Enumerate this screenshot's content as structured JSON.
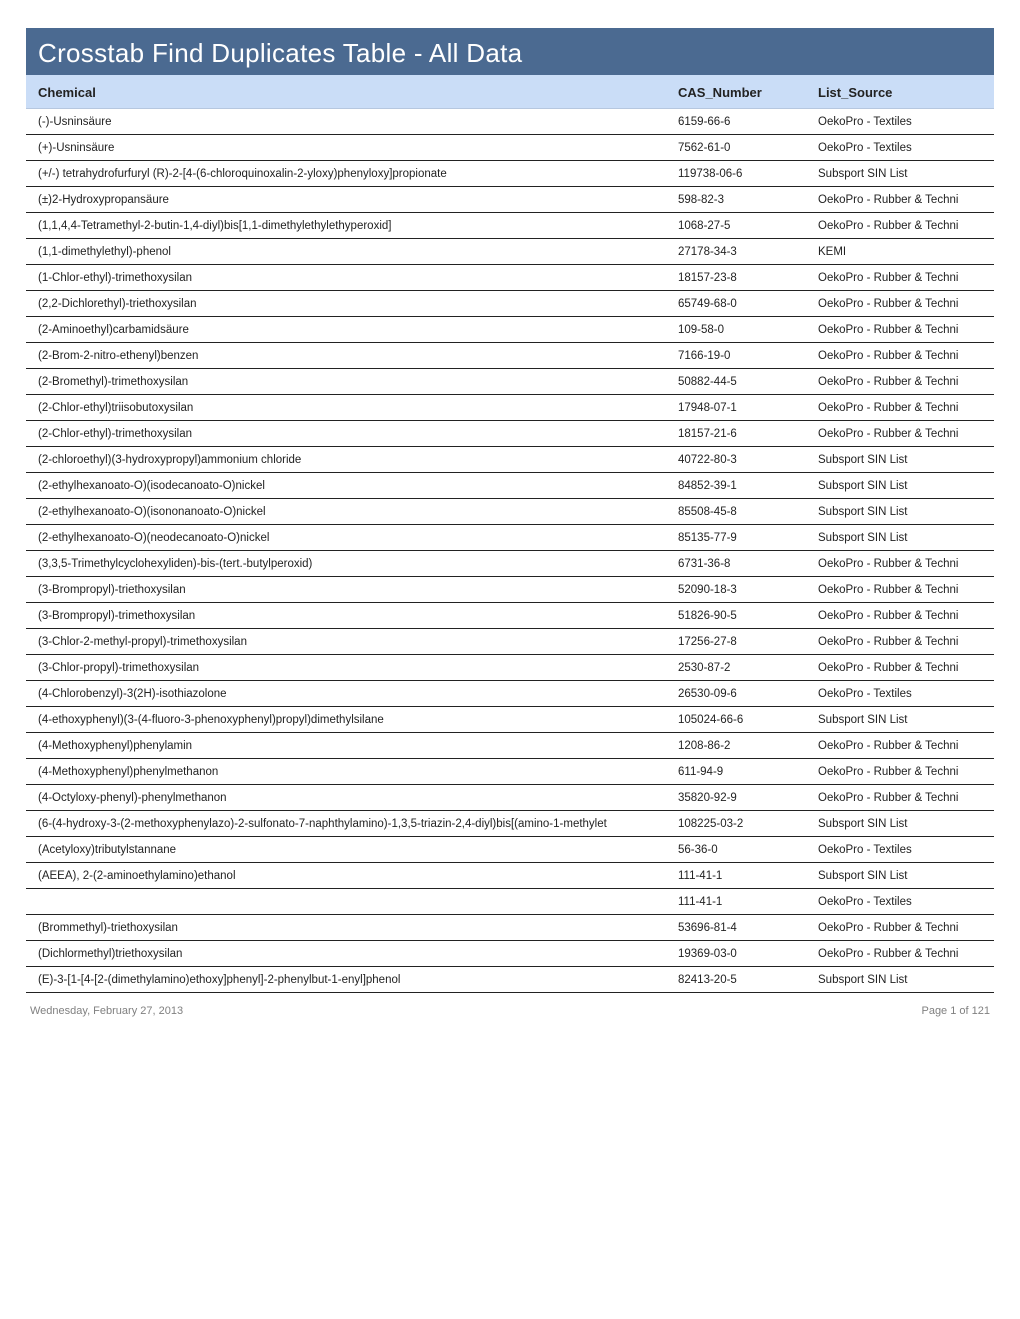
{
  "report": {
    "title": "Crosstab Find Duplicates Table - All Data",
    "headers": {
      "chemical": "Chemical",
      "cas": "CAS_Number",
      "source": "List_Source"
    },
    "rows": [
      {
        "chemical": "(-)-Usninsäure",
        "cas": "6159-66-6",
        "source": "OekoPro - Textiles"
      },
      {
        "chemical": "(+)-Usninsäure",
        "cas": "7562-61-0",
        "source": "OekoPro - Textiles"
      },
      {
        "chemical": "(+/-) tetrahydrofurfuryl (R)-2-[4-(6-chloroquinoxalin-2-yloxy)phenyloxy]propionate",
        "cas": "119738-06-6",
        "source": "Subsport SIN List"
      },
      {
        "chemical": "(±)2-Hydroxypropansäure",
        "cas": "598-82-3",
        "source": "OekoPro - Rubber & Techni"
      },
      {
        "chemical": "(1,1,4,4-Tetramethyl-2-butin-1,4-diyl)bis[1,1-dimethylethylethyperoxid]",
        "cas": "1068-27-5",
        "source": "OekoPro - Rubber & Techni"
      },
      {
        "chemical": "(1,1-dimethylethyl)-phenol",
        "cas": "27178-34-3",
        "source": "KEMI"
      },
      {
        "chemical": "(1-Chlor-ethyl)-trimethoxysilan",
        "cas": "18157-23-8",
        "source": "OekoPro - Rubber & Techni"
      },
      {
        "chemical": "(2,2-Dichlorethyl)-triethoxysilan",
        "cas": "65749-68-0",
        "source": "OekoPro - Rubber & Techni"
      },
      {
        "chemical": "(2-Aminoethyl)carbamidsäure",
        "cas": "109-58-0",
        "source": "OekoPro - Rubber & Techni"
      },
      {
        "chemical": "(2-Brom-2-nitro-ethenyl)benzen",
        "cas": "7166-19-0",
        "source": "OekoPro - Rubber & Techni"
      },
      {
        "chemical": "(2-Bromethyl)-trimethoxysilan",
        "cas": "50882-44-5",
        "source": "OekoPro - Rubber & Techni"
      },
      {
        "chemical": "(2-Chlor-ethyl)triisobutoxysilan",
        "cas": "17948-07-1",
        "source": "OekoPro - Rubber & Techni"
      },
      {
        "chemical": "(2-Chlor-ethyl)-trimethoxysilan",
        "cas": "18157-21-6",
        "source": "OekoPro - Rubber & Techni"
      },
      {
        "chemical": "(2-chloroethyl)(3-hydroxypropyl)ammonium chloride",
        "cas": "40722-80-3",
        "source": "Subsport SIN List"
      },
      {
        "chemical": "(2-ethylhexanoato-O)(isodecanoato-O)nickel",
        "cas": "84852-39-1",
        "source": "Subsport SIN List"
      },
      {
        "chemical": "(2-ethylhexanoato-O)(isononanoato-O)nickel",
        "cas": "85508-45-8",
        "source": "Subsport SIN List"
      },
      {
        "chemical": "(2-ethylhexanoato-O)(neodecanoato-O)nickel",
        "cas": "85135-77-9",
        "source": "Subsport SIN List"
      },
      {
        "chemical": "(3,3,5-Trimethylcyclohexyliden)-bis-(tert.-butylperoxid)",
        "cas": "6731-36-8",
        "source": "OekoPro - Rubber & Techni"
      },
      {
        "chemical": "(3-Brompropyl)-triethoxysilan",
        "cas": "52090-18-3",
        "source": "OekoPro - Rubber & Techni"
      },
      {
        "chemical": "(3-Brompropyl)-trimethoxysilan",
        "cas": "51826-90-5",
        "source": "OekoPro - Rubber & Techni"
      },
      {
        "chemical": "(3-Chlor-2-methyl-propyl)-trimethoxysilan",
        "cas": "17256-27-8",
        "source": "OekoPro - Rubber & Techni"
      },
      {
        "chemical": "(3-Chlor-propyl)-trimethoxysilan",
        "cas": "2530-87-2",
        "source": "OekoPro - Rubber & Techni"
      },
      {
        "chemical": "(4-Chlorobenzyl)-3(2H)-isothiazolone",
        "cas": "26530-09-6",
        "source": "OekoPro - Textiles"
      },
      {
        "chemical": "(4-ethoxyphenyl)(3-(4-fluoro-3-phenoxyphenyl)propyl)dimethylsilane",
        "cas": "105024-66-6",
        "source": "Subsport SIN List"
      },
      {
        "chemical": "(4-Methoxyphenyl)phenylamin",
        "cas": "1208-86-2",
        "source": "OekoPro - Rubber & Techni"
      },
      {
        "chemical": "(4-Methoxyphenyl)phenylmethanon",
        "cas": "611-94-9",
        "source": "OekoPro - Rubber & Techni"
      },
      {
        "chemical": "(4-Octyloxy-phenyl)-phenylmethanon",
        "cas": "35820-92-9",
        "source": "OekoPro - Rubber & Techni"
      },
      {
        "chemical": "(6-(4-hydroxy-3-(2-methoxyphenylazo)-2-sulfonato-7-naphthylamino)-1,3,5-triazin-2,4-diyl)bis[(amino-1-methylet",
        "cas": "108225-03-2",
        "source": "Subsport SIN List"
      },
      {
        "chemical": "(Acetyloxy)tributylstannane",
        "cas": "56-36-0",
        "source": "OekoPro - Textiles"
      },
      {
        "chemical": "(AEEA), 2-(2-aminoethylamino)ethanol",
        "cas": "111-41-1",
        "source": "Subsport SIN List"
      },
      {
        "chemical": "",
        "cas": "111-41-1",
        "source": "OekoPro - Textiles"
      },
      {
        "chemical": "(Brommethyl)-triethoxysilan",
        "cas": "53696-81-4",
        "source": "OekoPro - Rubber & Techni"
      },
      {
        "chemical": "(Dichlormethyl)triethoxysilan",
        "cas": "19369-03-0",
        "source": "OekoPro - Rubber & Techni"
      },
      {
        "chemical": "(E)-3-[1-[4-[2-(dimethylamino)ethoxy]phenyl]-2-phenylbut-1-enyl]phenol",
        "cas": "82413-20-5",
        "source": "Subsport SIN List"
      }
    ],
    "footer": {
      "date": "Wednesday, February 27, 2013",
      "page": "Page 1 of 121"
    },
    "colors": {
      "title_bg": "#4b6a91",
      "header_bg": "#caddf7",
      "text": "#222222",
      "footer_text": "#808080",
      "row_border": "#222222"
    }
  }
}
